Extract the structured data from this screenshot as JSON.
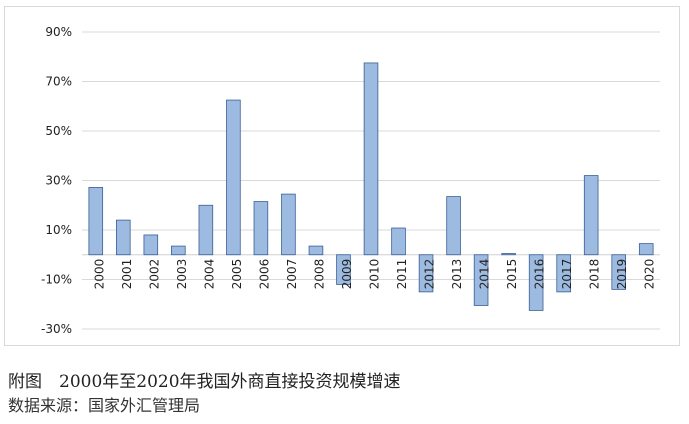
{
  "chart_data": {
    "type": "bar",
    "categories": [
      "2000",
      "2001",
      "2002",
      "2003",
      "2004",
      "2005",
      "2006",
      "2007",
      "2008",
      "2009",
      "2010",
      "2011",
      "2012",
      "2013",
      "2014",
      "2015",
      "2016",
      "2017",
      "2018",
      "2019",
      "2020"
    ],
    "values": [
      27.2,
      14.0,
      8.0,
      3.5,
      20.0,
      62.5,
      21.5,
      24.5,
      3.5,
      -12.0,
      77.5,
      10.8,
      -15.0,
      23.5,
      -20.5,
      0.5,
      -22.5,
      -15.0,
      32.0,
      -14.0,
      4.5
    ],
    "yticks": [
      "90%",
      "70%",
      "50%",
      "30%",
      "10%",
      "-10%",
      "-30%"
    ],
    "ylim": [
      -30,
      90
    ],
    "grid": true,
    "bar_color": "#9dbbe0",
    "bar_edge_color": "#3a5f95"
  },
  "caption": {
    "title": "附图　2000年至2020年我国外商直接投资规模增速",
    "source": "数据来源：国家外汇管理局"
  }
}
